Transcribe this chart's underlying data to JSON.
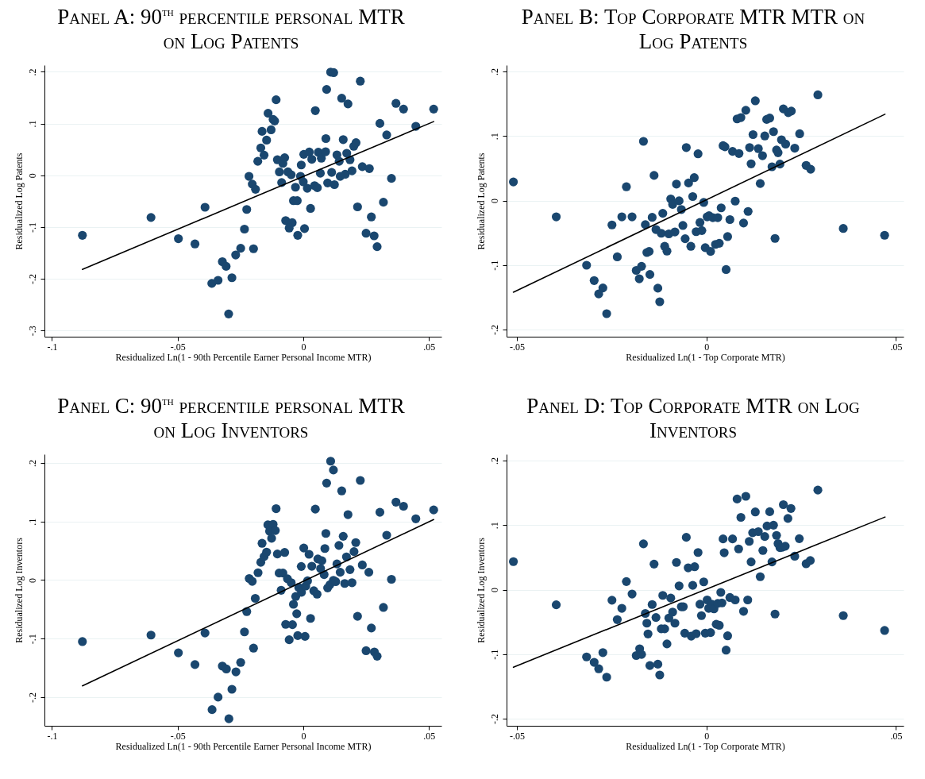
{
  "chart_data": [
    {
      "type": "scatter",
      "title": "Panel A: 90$^{th}$ percentile personal MTR on Log Patents",
      "xlabel": "Residualized Ln(1 - 90th Percentile Earner Personal Income MTR)",
      "ylabel": "Residualized Log Patents",
      "xlim": [
        -0.103,
        0.055
      ],
      "ylim": [
        -0.312,
        0.213
      ],
      "xticks": [
        {
          "value": -0.1,
          "label": "-.1"
        },
        {
          "value": -0.05,
          "label": "-.05"
        },
        {
          "value": 0,
          "label": "0"
        },
        {
          "value": 0.05,
          "label": ".05"
        }
      ],
      "yticks": [
        {
          "value": -0.3,
          "label": "-.3"
        },
        {
          "value": -0.2,
          "label": "-.2"
        },
        {
          "value": -0.1,
          "label": "-.1"
        },
        {
          "value": 0,
          "label": "0"
        },
        {
          "value": 0.1,
          "label": ".1"
        },
        {
          "value": 0.2,
          "label": ".2"
        }
      ],
      "grid": "y",
      "marker": "circle",
      "series": [
        {
          "color": "#1a476f",
          "x": [
            -0.0879,
            -0.0606,
            -0.0497,
            -0.0431,
            -0.0391,
            -0.0364,
            -0.0339,
            -0.0322,
            -0.0307,
            -0.0297,
            -0.0284,
            -0.0269,
            -0.0249,
            -0.0234,
            -0.0225,
            -0.0198,
            -0.0216,
            -0.0203,
            -0.019,
            -0.0181,
            -0.0169,
            -0.0156,
            -0.0164,
            -0.0146,
            -0.014,
            -0.0128,
            -0.012,
            -0.0114,
            -0.0108,
            -0.0103,
            -0.0095,
            -0.0086,
            -0.0081,
            -0.0074,
            -0.0061,
            -0.0048,
            -0.007,
            -0.0044,
            -0.0056,
            -0.0039,
            -0.0024,
            -0.0031,
            -0.0022,
            -0.0008,
            -0.0011,
            0.0,
            0.0005,
            0.0002,
            0.0016,
            0.0024,
            0.0034,
            0.0029,
            0.0048,
            0.0045,
            0.0056,
            0.006,
            0.0072,
            0.0068,
            0.0089,
            0.009,
            0.0093,
            0.0109,
            0.0121,
            0.0097,
            0.0113,
            0.0124,
            0.0134,
            0.0143,
            0.0147,
            0.0153,
            0.0159,
            0.0167,
            0.0173,
            0.0178,
            0.0186,
            0.0194,
            0.0201,
            0.021,
            0.0216,
            0.0227,
            0.0235,
            0.0263,
            0.025,
            0.0271,
            0.0282,
            0.0294,
            0.0305,
            0.0319,
            0.0332,
            0.0351,
            0.0369,
            0.0399,
            0.0448,
            0.0519
          ],
          "values": [
            -0.116,
            -0.0815,
            -0.1225,
            -0.1327,
            -0.0618,
            -0.209,
            -0.203,
            -0.167,
            -0.176,
            -0.268,
            -0.198,
            -0.154,
            -0.141,
            -0.104,
            -0.066,
            -0.142,
            -0.002,
            -0.017,
            -0.027,
            0.027,
            0.053,
            0.039,
            0.085,
            0.068,
            0.12,
            0.088,
            0.108,
            0.105,
            0.146,
            0.03,
            0.0066,
            -0.014,
            0.023,
            0.034,
            0.0066,
            0.001,
            -0.0876,
            -0.0916,
            -0.102,
            -0.049,
            -0.049,
            -0.023,
            -0.116,
            0.02,
            -0.002,
            -0.0127,
            -0.103,
            0.0405,
            -0.025,
            0.045,
            0.031,
            -0.064,
            0.125,
            -0.02,
            -0.024,
            0.0446,
            0.033,
            0.004,
            0.0456,
            0.071,
            0.166,
            0.1995,
            0.1985,
            -0.0147,
            0.0056,
            -0.018,
            0.0395,
            0.027,
            -0.002,
            0.149,
            0.069,
            0.002,
            0.0425,
            0.138,
            0.03,
            0.0086,
            0.056,
            0.063,
            -0.061,
            0.182,
            0.0167,
            0.013,
            -0.112,
            -0.0805,
            -0.117,
            -0.138,
            0.1003,
            -0.052,
            0.078,
            -0.006,
            0.139,
            0.128,
            0.0947,
            0.128
          ]
        },
        {
          "type": "line",
          "marker": "none",
          "color": "#000000",
          "x": [
            -0.0879,
            0.0519
          ],
          "values": [
            -0.1818,
            0.1038
          ]
        }
      ]
    },
    {
      "type": "scatter",
      "title": "Panel B: Top Corporate MTR MTR on Log Patents",
      "xlabel": "Residualized Ln(1 - Top Corporate MTR)",
      "ylabel": "Residualized Log Patents",
      "xlim": [
        -0.0527,
        0.052
      ],
      "ylim": [
        -0.211,
        0.21
      ],
      "xticks": [
        {
          "value": -0.05,
          "label": "-.05"
        },
        {
          "value": 0,
          "label": "0"
        },
        {
          "value": 0.05,
          "label": ".05"
        }
      ],
      "yticks": [
        {
          "value": -0.2,
          "label": "-.2"
        },
        {
          "value": -0.1,
          "label": "-.1"
        },
        {
          "value": 0,
          "label": "0"
        },
        {
          "value": 0.1,
          "label": ".1"
        },
        {
          "value": 0.2,
          "label": ".2"
        }
      ],
      "grid": "y",
      "marker": "circle",
      "series": [
        {
          "color": "#1a476f",
          "x": [
            -0.0509,
            -0.0396,
            -0.0316,
            -0.0296,
            -0.0284,
            -0.0273,
            -0.0263,
            -0.0249,
            -0.0235,
            -0.0223,
            -0.0211,
            -0.0196,
            -0.0185,
            -0.0177,
            -0.0171,
            -0.0166,
            -0.0161,
            -0.0157,
            -0.0151,
            -0.0149,
            -0.0143,
            -0.0138,
            -0.0133,
            -0.0128,
            -0.0123,
            -0.0119,
            -0.0115,
            -0.011,
            -0.0104,
            -0.0099,
            -0.0094,
            -0.0089,
            -0.0083,
            -0.0079,
            -0.0072,
            -0.0066,
            -0.0062,
            -0.0056,
            -0.0053,
            -0.0047,
            -0.0041,
            -0.0036,
            -0.0032,
            -0.0027,
            -0.0022,
            -0.0017,
            -0.0012,
            -0.0007,
            -0.0003,
            0.0002,
            0.0007,
            0.0011,
            0.0017,
            0.0024,
            0.003,
            0.0034,
            0.0039,
            0.0044,
            0.0049,
            0.0052,
            0.0056,
            0.0062,
            0.0069,
            0.0076,
            0.0081,
            0.0086,
            0.0091,
            0.0098,
            0.0104,
            0.011,
            0.0114,
            0.0118,
            0.0123,
            0.0129,
            0.0137,
            0.0142,
            0.0148,
            0.0154,
            0.0159,
            0.0167,
            0.0173,
            0.0177,
            0.0181,
            0.0185,
            0.0189,
            0.0194,
            0.0198,
            0.0203,
            0.0209,
            0.0216,
            0.0224,
            0.0233,
            0.0246,
            0.0263,
            0.0275,
            0.0294,
            0.0361,
            0.047
          ],
          "values": [
            0.0289,
            -0.0252,
            -0.1002,
            -0.124,
            -0.1447,
            -0.1354,
            -0.1753,
            -0.0377,
            -0.0872,
            -0.0252,
            0.0214,
            -0.0252,
            -0.1082,
            -0.1212,
            -0.1019,
            0.0918,
            -0.0373,
            -0.0805,
            -0.0788,
            -0.1145,
            -0.026,
            0.039,
            -0.0449,
            -0.1358,
            -0.1568,
            -0.0507,
            -0.0197,
            -0.0709,
            -0.0784,
            -0.0516,
            0.0025,
            -0.0059,
            -0.0486,
            0.0256,
            -0.0004,
            -0.0138,
            -0.0386,
            -0.0591,
            0.0822,
            0.0273,
            -0.0709,
            0.0063,
            0.0356,
            -0.0482,
            0.0725,
            -0.034,
            -0.0465,
            -0.0029,
            -0.073,
            -0.0252,
            -0.0235,
            -0.0788,
            -0.0264,
            -0.0679,
            -0.0264,
            -0.0662,
            -0.0113,
            0.0851,
            0.0834,
            -0.1069,
            -0.0558,
            -0.0294,
            0.0763,
            -0.0008,
            0.1266,
            0.073,
            0.1287,
            -0.0348,
            0.14,
            -0.0168,
            0.0822,
            0.057,
            0.1023,
            0.1547,
            0.0805,
            0.0264,
            0.0696,
            0.1002,
            0.1258,
            0.1279,
            0.0524,
            0.1069,
            -0.0587,
            0.0784,
            0.0742,
            0.0566,
            0.0943,
            0.1421,
            0.0876,
            0.1363,
            0.1388,
            0.0813,
            0.1036,
            0.0545,
            0.0486,
            0.1639,
            -0.0432,
            -0.0537
          ]
        },
        {
          "type": "line",
          "marker": "none",
          "color": "#000000",
          "x": [
            -0.0509,
            0.0471
          ],
          "values": [
            -0.1421,
            0.1338
          ]
        }
      ]
    },
    {
      "type": "scatter",
      "title": "Panel C: 90$^{th}$ percentile personal MTR on Log Inventors",
      "xlabel": "Residualized Ln(1 - 90th Percentile Earner Personal Income MTR)",
      "ylabel": "Residualized Log Inventors",
      "xlim": [
        -0.103,
        0.055
      ],
      "ylim": [
        -0.249,
        0.215
      ],
      "xticks": [
        {
          "value": -0.1,
          "label": "-.1"
        },
        {
          "value": -0.05,
          "label": "-.05"
        },
        {
          "value": 0,
          "label": "0"
        },
        {
          "value": 0.05,
          "label": ".05"
        }
      ],
      "yticks": [
        {
          "value": -0.2,
          "label": "-.2"
        },
        {
          "value": -0.1,
          "label": "-.1"
        },
        {
          "value": 0,
          "label": "0"
        },
        {
          "value": 0.1,
          "label": ".1"
        },
        {
          "value": 0.2,
          "label": ".2"
        }
      ],
      "grid": "y",
      "marker": "circle",
      "series": [
        {
          "color": "#1a476f",
          "x": [
            -0.0879,
            -0.0606,
            -0.0497,
            -0.0431,
            -0.0391,
            -0.0363,
            -0.0339,
            -0.0322,
            -0.0306,
            -0.0296,
            -0.0284,
            -0.0268,
            -0.0249,
            -0.0234,
            -0.0225,
            -0.0198,
            -0.0215,
            -0.0203,
            -0.0191,
            -0.018,
            -0.0169,
            -0.0156,
            -0.0146,
            -0.0164,
            -0.0141,
            -0.012,
            -0.0134,
            -0.0111,
            -0.0126,
            -0.0108,
            -0.0103,
            -0.0074,
            -0.0096,
            -0.0081,
            -0.0088,
            -0.0063,
            -0.0048,
            -0.007,
            -0.0043,
            -0.0056,
            -0.0039,
            -0.0026,
            -0.003,
            -0.0022,
            0.0007,
            -0.0008,
            -0.0018,
            -0.0007,
            0.0002,
            0.001,
            0.0017,
            0.0023,
            0.0034,
            0.0029,
            0.0042,
            0.0055,
            0.0048,
            0.0058,
            0.0074,
            0.0069,
            0.0083,
            0.0086,
            0.009,
            0.0093,
            0.0097,
            0.0109,
            0.012,
            0.0106,
            0.012,
            0.0129,
            0.0134,
            0.0142,
            0.0147,
            0.0153,
            0.0159,
            0.0165,
            0.0172,
            0.0178,
            0.0186,
            0.0194,
            0.0202,
            0.0209,
            0.0216,
            0.0227,
            0.0235,
            0.0261,
            0.025,
            0.0271,
            0.0283,
            0.0294,
            0.0305,
            0.0319,
            0.0332,
            0.0351,
            0.0369,
            0.0399,
            0.0448,
            0.0519
          ],
          "values": [
            -0.1051,
            -0.094,
            -0.1243,
            -0.1443,
            -0.0904,
            -0.2214,
            -0.2,
            -0.147,
            -0.1519,
            -0.237,
            -0.1866,
            -0.1568,
            -0.1408,
            -0.0886,
            -0.0539,
            -0.1163,
            0.0027,
            -0.0022,
            -0.0312,
            0.0125,
            0.0303,
            0.0401,
            0.0477,
            0.0628,
            0.0944,
            0.0953,
            0.0833,
            0.0846,
            0.0713,
            0.122,
            0.0445,
            0.0472,
            0.012,
            0.012,
            -0.0174,
            0.0022,
            -0.0045,
            -0.0757,
            -0.0762,
            -0.102,
            -0.0414,
            -0.0575,
            -0.0281,
            -0.0949,
            -0.0962,
            0.0232,
            -0.0125,
            -0.0209,
            0.0548,
            -0.0102,
            -0.0013,
            0.0441,
            0.0236,
            -0.0655,
            -0.0183,
            -0.0241,
            0.1212,
            0.0361,
            0.033,
            0.0196,
            0.0094,
            0.0539,
            0.0797,
            0.1657,
            -0.0134,
            0.2031,
            0.188,
            -0.008,
            -0.0004,
            -0.0027,
            0.0276,
            0.0592,
            0.0134,
            0.1523,
            0.0748,
            -0.0058,
            0.0396,
            0.1118,
            0.0178,
            -0.0045,
            0.0486,
            0.0641,
            -0.0619,
            0.1702,
            0.0258,
            0.0134,
            -0.1207,
            -0.082,
            -0.1229,
            -0.1301,
            0.1158,
            -0.0468,
            0.0766,
            0.0013,
            0.1332,
            0.1261,
            0.1047,
            0.1198
          ]
        },
        {
          "type": "line",
          "marker": "none",
          "color": "#000000",
          "x": [
            -0.0879,
            0.0519
          ],
          "values": [
            -0.1808,
            0.1033
          ]
        }
      ]
    },
    {
      "type": "scatter",
      "title": "Panel D: Top Corporate MTR on Log Inventors",
      "xlabel": "Residualized Ln(1 - Top Corporate MTR)",
      "ylabel": "Residualized Log Inventors",
      "xlim": [
        -0.0527,
        0.052
      ],
      "ylim": [
        -0.211,
        0.21
      ],
      "xticks": [
        {
          "value": -0.05,
          "label": "-.05"
        },
        {
          "value": 0,
          "label": "0"
        },
        {
          "value": 0.05,
          "label": ".05"
        }
      ],
      "yticks": [
        {
          "value": -0.2,
          "label": "-.2"
        },
        {
          "value": -0.1,
          "label": "-.1"
        },
        {
          "value": 0,
          "label": "0"
        },
        {
          "value": 0.1,
          "label": ".1"
        },
        {
          "value": 0.2,
          "label": ".2"
        }
      ],
      "grid": "y",
      "marker": "circle",
      "series": [
        {
          "color": "#1a476f",
          "x": [
            -0.0509,
            -0.0396,
            -0.0316,
            -0.0296,
            -0.0284,
            -0.0273,
            -0.0263,
            -0.0249,
            -0.0235,
            -0.0223,
            -0.0211,
            -0.0196,
            -0.0185,
            -0.0176,
            -0.0171,
            -0.0166,
            -0.0161,
            -0.0157,
            -0.0154,
            -0.0149,
            -0.0143,
            -0.0138,
            -0.0133,
            -0.0128,
            -0.0123,
            -0.0119,
            -0.0115,
            -0.011,
            -0.0104,
            -0.0099,
            -0.0094,
            -0.0089,
            -0.0083,
            -0.0079,
            -0.0072,
            -0.0066,
            -0.0061,
            -0.0057,
            -0.0053,
            -0.0048,
            -0.004,
            -0.0036,
            -0.0031,
            -0.0027,
            -0.0022,
            -0.0017,
            -0.0013,
            -0.0007,
            -0.0003,
            0.0002,
            0.0006,
            0.0011,
            0.0014,
            0.002,
            0.0026,
            0.003,
            0.0034,
            0.0038,
            0.0041,
            0.0044,
            0.0047,
            0.0052,
            0.0056,
            0.0062,
            0.0069,
            0.0076,
            0.0081,
            0.0085,
            0.0091,
            0.0098,
            0.0104,
            0.0109,
            0.0113,
            0.0118,
            0.0122,
            0.0129,
            0.0137,
            0.0142,
            0.0149,
            0.0154,
            0.016,
            0.0167,
            0.0173,
            0.0177,
            0.0181,
            0.0185,
            0.0189,
            0.0194,
            0.0199,
            0.0203,
            0.0208,
            0.0215,
            0.0223,
            0.0233,
            0.0245,
            0.0263,
            0.0274,
            0.0294,
            0.0361,
            0.047
          ],
          "values": [
            0.0435,
            -0.0234,
            -0.1042,
            -0.1126,
            -0.1226,
            -0.0975,
            -0.1356,
            -0.0163,
            -0.0464,
            -0.0289,
            0.0126,
            -0.0067,
            -0.1021,
            -0.0916,
            -0.1004,
            0.0711,
            -0.0368,
            -0.0519,
            -0.0686,
            -0.1176,
            -0.023,
            0.0397,
            -0.0431,
            -0.1155,
            -0.1322,
            -0.0607,
            -0.0088,
            -0.0607,
            -0.0841,
            -0.0439,
            -0.013,
            -0.0347,
            -0.0519,
            0.0423,
            0.0059,
            -0.0264,
            -0.0264,
            -0.0674,
            0.0812,
            0.0339,
            -0.072,
            0.0067,
            0.0356,
            -0.0682,
            0.0577,
            -0.0226,
            -0.0402,
            0.0121,
            -0.0674,
            -0.0159,
            -0.0289,
            -0.0665,
            -0.0226,
            -0.0297,
            -0.0536,
            -0.0213,
            -0.0552,
            -0.0042,
            -0.0205,
            0.0787,
            0.0573,
            -0.0937,
            -0.0715,
            -0.0121,
            0.0787,
            -0.0159,
            0.1406,
            0.0632,
            0.1121,
            -0.0335,
            0.1448,
            -0.0159,
            0.0749,
            0.0431,
            0.0883,
            0.1205,
            0.09,
            0.0201,
            0.0607,
            0.0824,
            0.0987,
            0.1209,
            0.0431,
            0.1,
            -0.0377,
            0.0841,
            0.0715,
            0.0653,
            0.0657,
            0.1318,
            0.0674,
            0.1105,
            0.1259,
            0.0519,
            0.0791,
            0.0402,
            0.0452,
            0.1544,
            -0.0402,
            -0.0632
          ]
        },
        {
          "type": "line",
          "marker": "none",
          "color": "#000000",
          "x": [
            -0.0509,
            0.0471
          ],
          "values": [
            -0.1201,
            0.1126
          ]
        }
      ]
    }
  ]
}
